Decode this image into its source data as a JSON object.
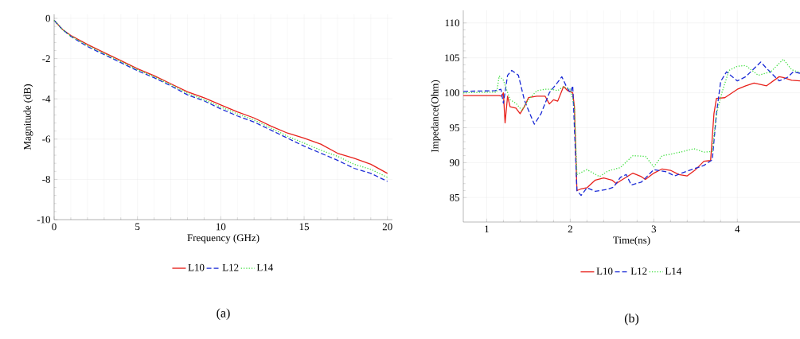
{
  "chart_data": [
    {
      "type": "line",
      "xlabel": "Frequency (GHz)",
      "ylabel": "Magnitude (dB)",
      "xlim": [
        0,
        20.3
      ],
      "ylim": [
        -10,
        0.2
      ],
      "xticks": [
        0,
        5,
        10,
        15,
        20
      ],
      "yticks": [
        -10,
        -8,
        -6,
        -4,
        -2,
        0
      ],
      "grid": true,
      "legend": "bottom",
      "annotations": [
        "(a)"
      ],
      "series": [
        {
          "name": "L10",
          "color": "#e8211b",
          "line_style": "solid",
          "x": [
            0,
            0.5,
            1,
            2,
            3,
            4,
            5,
            6,
            7,
            8,
            9,
            10,
            11,
            12,
            13,
            14,
            15,
            16,
            17,
            18,
            19,
            20
          ],
          "values": [
            -0.1,
            -0.55,
            -0.85,
            -1.3,
            -1.7,
            -2.1,
            -2.5,
            -2.85,
            -3.25,
            -3.65,
            -3.95,
            -4.3,
            -4.65,
            -4.95,
            -5.35,
            -5.7,
            -5.95,
            -6.25,
            -6.7,
            -6.95,
            -7.25,
            -7.7
          ]
        },
        {
          "name": "L12",
          "color": "#1a2ad6",
          "line_style": "dashed",
          "x": [
            0,
            0.5,
            1,
            2,
            3,
            4,
            5,
            6,
            7,
            8,
            9,
            10,
            11,
            12,
            13,
            14,
            15,
            16,
            17,
            18,
            19,
            20
          ],
          "values": [
            -0.1,
            -0.55,
            -0.9,
            -1.4,
            -1.8,
            -2.2,
            -2.6,
            -2.95,
            -3.35,
            -3.8,
            -4.1,
            -4.5,
            -4.85,
            -5.15,
            -5.55,
            -5.95,
            -6.35,
            -6.7,
            -7.05,
            -7.45,
            -7.7,
            -8.1
          ]
        },
        {
          "name": "L14",
          "color": "#43e043",
          "line_style": "dotted",
          "x": [
            0,
            0.5,
            1,
            2,
            3,
            4,
            5,
            6,
            7,
            8,
            9,
            10,
            11,
            12,
            13,
            14,
            15,
            16,
            17,
            18,
            19,
            20
          ],
          "values": [
            -0.1,
            -0.55,
            -0.88,
            -1.35,
            -1.75,
            -2.15,
            -2.55,
            -2.9,
            -3.3,
            -3.72,
            -4.05,
            -4.4,
            -4.75,
            -5.05,
            -5.45,
            -5.85,
            -6.2,
            -6.55,
            -6.85,
            -7.25,
            -7.5,
            -7.9
          ]
        }
      ]
    },
    {
      "type": "line",
      "xlabel": "Time(ns)",
      "ylabel": "Impedance(Ohm)",
      "xlim": [
        0.72,
        4.75
      ],
      "ylim": [
        81.5,
        111.8
      ],
      "xticks": [
        1,
        2,
        3,
        4
      ],
      "yticks": [
        85,
        90,
        95,
        100,
        105,
        110
      ],
      "grid": true,
      "legend": "bottom",
      "annotations": [
        "(b)"
      ],
      "series": [
        {
          "name": "L10",
          "color": "#e8211b",
          "line_style": "solid",
          "x": [
            0.72,
            1.15,
            1.18,
            1.2,
            1.22,
            1.25,
            1.28,
            1.35,
            1.4,
            1.45,
            1.5,
            1.6,
            1.7,
            1.75,
            1.8,
            1.85,
            1.92,
            1.97,
            2.03,
            2.05,
            2.08,
            2.12,
            2.2,
            2.3,
            2.4,
            2.5,
            2.55,
            2.6,
            2.75,
            2.85,
            2.9,
            3.0,
            3.1,
            3.2,
            3.3,
            3.4,
            3.5,
            3.6,
            3.68,
            3.72,
            3.75,
            3.85,
            4.0,
            4.1,
            4.2,
            4.35,
            4.5,
            4.55,
            4.65,
            4.75
          ],
          "values": [
            99.6,
            99.6,
            99.5,
            100,
            95.7,
            99.5,
            98,
            97.8,
            97,
            98,
            99.3,
            99.5,
            99.5,
            98.4,
            99,
            98.8,
            100.9,
            100.3,
            100,
            98,
            86,
            86.2,
            86.4,
            87.5,
            87.8,
            87.5,
            87,
            87.4,
            88.5,
            88,
            87.6,
            88.5,
            89.1,
            88.9,
            88.3,
            88.1,
            89,
            90.2,
            90.3,
            97,
            99.2,
            99.3,
            100.5,
            101,
            101.4,
            101,
            102.3,
            102.2,
            101.8,
            101.7
          ]
        },
        {
          "name": "L12",
          "color": "#1a2ad6",
          "line_style": "dashed",
          "x": [
            0.72,
            1.1,
            1.17,
            1.2,
            1.25,
            1.3,
            1.38,
            1.45,
            1.5,
            1.57,
            1.65,
            1.75,
            1.85,
            1.9,
            1.95,
            2.0,
            2.03,
            2.08,
            2.13,
            2.2,
            2.3,
            2.45,
            2.52,
            2.6,
            2.67,
            2.73,
            2.85,
            3.0,
            3.15,
            3.25,
            3.4,
            3.6,
            3.7,
            3.75,
            3.8,
            3.87,
            4.0,
            4.1,
            4.28,
            4.35,
            4.5,
            4.6,
            4.67,
            4.75
          ],
          "values": [
            100.2,
            100.3,
            100.5,
            98.5,
            102.5,
            103.2,
            102.5,
            99,
            97.5,
            95.5,
            97,
            100,
            101.5,
            102.3,
            101,
            100,
            101,
            86,
            85.3,
            86.4,
            85.9,
            86.2,
            86.5,
            87.9,
            88.3,
            86.8,
            87.2,
            89,
            88.7,
            88.1,
            88.8,
            89.6,
            90.4,
            97,
            101.6,
            103,
            101.7,
            102.3,
            104.4,
            103.5,
            101.7,
            102.2,
            103,
            102.8
          ]
        },
        {
          "name": "L14",
          "color": "#43e043",
          "line_style": "dotted",
          "x": [
            0.72,
            1.12,
            1.15,
            1.2,
            1.28,
            1.35,
            1.42,
            1.5,
            1.6,
            1.7,
            1.78,
            1.85,
            1.92,
            2.0,
            2.05,
            2.08,
            2.2,
            2.35,
            2.45,
            2.6,
            2.75,
            2.9,
            3.0,
            3.1,
            3.2,
            3.35,
            3.48,
            3.6,
            3.7,
            3.75,
            3.82,
            3.9,
            4.0,
            4.1,
            4.25,
            4.4,
            4.55,
            4.65,
            4.75
          ],
          "values": [
            100,
            100.1,
            102.4,
            101.8,
            99,
            98.5,
            97.5,
            99,
            100.3,
            100.5,
            100.5,
            100.3,
            100.9,
            100.5,
            98,
            88.3,
            89,
            88,
            88.8,
            89.3,
            91,
            90.9,
            89.4,
            91,
            91.2,
            91.6,
            92,
            91.5,
            91.6,
            97,
            100.2,
            103.2,
            103.8,
            103.9,
            102.5,
            103,
            104.8,
            103.3,
            102.9
          ]
        }
      ]
    }
  ]
}
